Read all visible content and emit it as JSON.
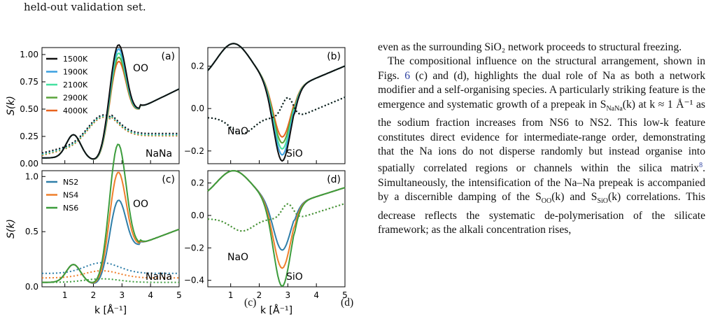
{
  "top_text": "held-out validation set.",
  "figure": {
    "colors": {
      "1500K": "#111111",
      "1900K": "#3aa0e0",
      "2100K": "#45e0a0",
      "2900K": "#5aa33a",
      "4000K": "#e8641e",
      "NS2": "#2f7ea8",
      "NS4": "#ef7f2b",
      "NS6": "#3c9c3c"
    },
    "panels": [
      {
        "tag": "(a)",
        "ylabel": "S(k)",
        "legend": [
          "1500K",
          "1900K",
          "2100K",
          "2900K",
          "4000K"
        ],
        "labels": [
          "OO",
          "NaNa"
        ],
        "yticks": [
          "0.00",
          "0.25",
          "0.50",
          "0.75",
          "1.00"
        ],
        "xticks": []
      },
      {
        "tag": "(b)",
        "ylabel": "",
        "legend": [],
        "labels": [
          "NaO",
          "SiO"
        ],
        "yticks": [
          "−0.2",
          "0.0",
          "0.2"
        ],
        "xticks": []
      },
      {
        "tag": "(c)",
        "ylabel": "S(k)",
        "legend": [
          "NS2",
          "NS4",
          "NS6"
        ],
        "labels": [
          "OO",
          "NaNa"
        ],
        "yticks": [
          "0.0",
          "0.5",
          "1.0"
        ],
        "xticks": [
          "1",
          "2",
          "3",
          "4",
          "5"
        ],
        "xlabel": "k [Å⁻¹]"
      },
      {
        "tag": "(d)",
        "ylabel": "",
        "legend": [],
        "labels": [
          "NaO",
          "SiO"
        ],
        "yticks": [
          "−0.4",
          "−0.2",
          "0.0",
          "0.2"
        ],
        "xticks": [
          "1",
          "2",
          "3",
          "4",
          "5"
        ],
        "xlabel": "k [Å⁻¹]"
      }
    ]
  },
  "caption_fragment": "(c)",
  "caption_fragment2": "(d)",
  "body": {
    "p1": "even as the surrounding SiO₂ network proceeds to structural freezing.",
    "p2_a": "The compositional influence on the structural arrangement, shown in Figs. ",
    "ref6": "6",
    "p2_b": " (c) and (d), highlights the dual role of Na as both a network modifier and a self-organising species. A particularly striking feature is the emergence and systematic growth of a prepeak in S",
    "p2_c": "(k) at k ≈ 1 Å⁻¹ as the sodium fraction increases from NS6 to NS2. This low-k feature constitutes direct evidence for intermediate-range order, demonstrating that the Na ions do not disperse randomly but instead organise into spatially correlated regions or channels within the silica matrix",
    "ref8": "8",
    "p2_d": ". Simultaneously, the intensification of the Na–Na prepeak is accompanied by a discernible damping of the S",
    "p2_e": "(k) and S",
    "p2_f": "(k) correlations. This decrease reflects the systematic de-polymerisation of the silicate framework; as the alkali concentration rises,",
    "sub_nana": "NaNa",
    "sub_oo": "OO",
    "sub_sio": "SiO"
  }
}
